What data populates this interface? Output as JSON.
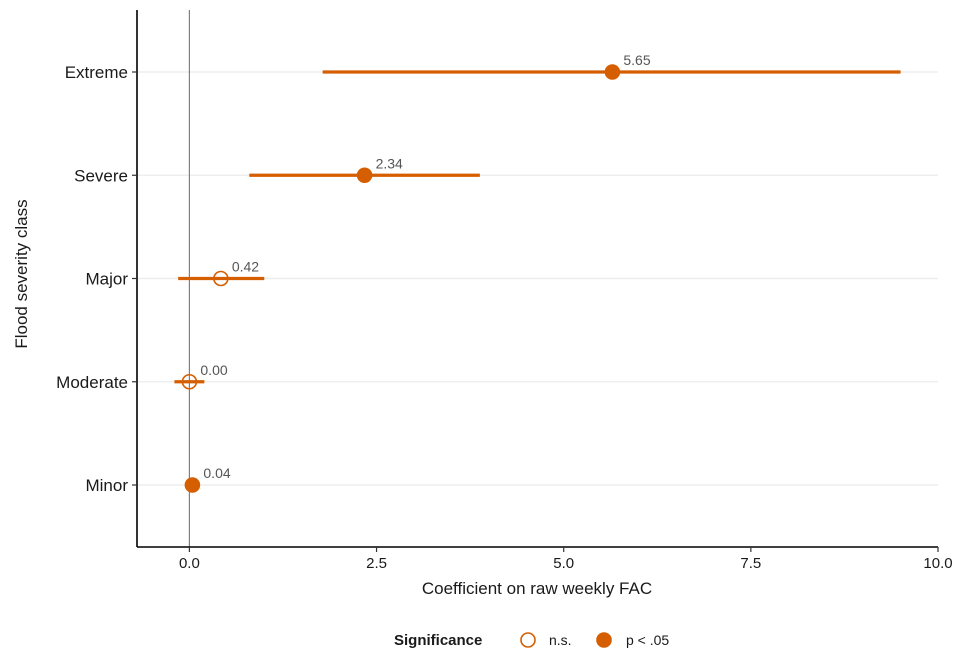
{
  "chart_data": {
    "type": "scatter",
    "title": "",
    "xlabel": "Coefficient on raw weekly FAC",
    "ylabel": "Flood severity class",
    "xlim": [
      -0.7,
      10.0
    ],
    "x_ticks": [
      0.0,
      2.5,
      5.0,
      7.5,
      10.0
    ],
    "x_tick_labels": [
      "0.0",
      "2.5",
      "5.0",
      "7.5",
      "10.0"
    ],
    "categories": [
      "Minor",
      "Moderate",
      "Major",
      "Severe",
      "Extreme"
    ],
    "reference_line_x": 0,
    "grid": "horizontal major gridlines only",
    "points": [
      {
        "category": "Minor",
        "estimate": 0.04,
        "ci_low": 0.04,
        "ci_high": 0.04,
        "label": "0.04",
        "significance": "p < .05"
      },
      {
        "category": "Moderate",
        "estimate": 0.0,
        "ci_low": -0.2,
        "ci_high": 0.2,
        "label": "0.00",
        "significance": "n.s."
      },
      {
        "category": "Major",
        "estimate": 0.42,
        "ci_low": -0.15,
        "ci_high": 1.0,
        "label": "0.42",
        "significance": "n.s."
      },
      {
        "category": "Severe",
        "estimate": 2.34,
        "ci_low": 0.8,
        "ci_high": 3.88,
        "label": "2.34",
        "significance": "p < .05"
      },
      {
        "category": "Extreme",
        "estimate": 5.65,
        "ci_low": 1.78,
        "ci_high": 9.5,
        "label": "5.65",
        "significance": "p < .05"
      }
    ],
    "legend": {
      "title": "Significance",
      "position": "bottom",
      "entries": [
        {
          "label": "n.s.",
          "marker": "open-circle"
        },
        {
          "label": "p < .05",
          "marker": "filled-circle"
        }
      ]
    },
    "colors": {
      "series": "#D55E00",
      "reference_line": "#808080",
      "grid": "#EBEBEB",
      "axis": "#000000"
    }
  }
}
